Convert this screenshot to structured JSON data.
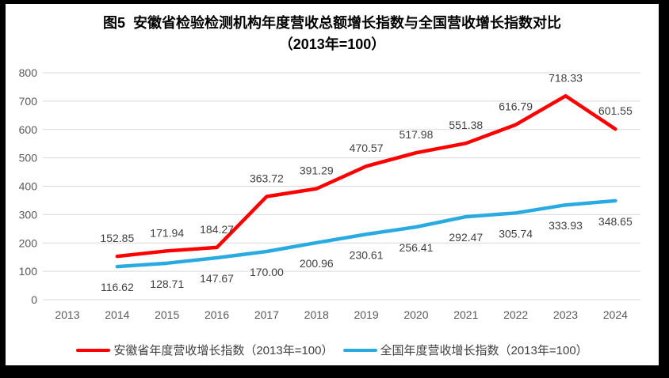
{
  "title": "图5  安徽省检验检测机构年度营收总额增长指数与全国营收增长指数对比",
  "subtitle": "（2013年=100）",
  "chart_data": {
    "type": "line",
    "categories": [
      "2013",
      "2014",
      "2015",
      "2016",
      "2017",
      "2018",
      "2019",
      "2020",
      "2021",
      "2022",
      "2023",
      "2024"
    ],
    "series": [
      {
        "name": "安徽省年度营收增长指数（2013年=100）",
        "color": "#FF0000",
        "label_position": "above",
        "values": [
          null,
          152.85,
          171.94,
          184.27,
          363.72,
          391.29,
          470.57,
          517.98,
          551.38,
          616.79,
          718.33,
          601.55
        ]
      },
      {
        "name": "全国年度营收增长指数（2013年=100）",
        "color": "#29ABE2",
        "label_position": "below",
        "values": [
          null,
          116.62,
          128.71,
          147.67,
          170.0,
          200.96,
          230.61,
          256.41,
          292.47,
          305.74,
          333.93,
          348.65
        ]
      }
    ],
    "ylim": [
      0,
      800
    ],
    "ytick_step": 100,
    "grid": true,
    "data_labels": true,
    "label_decimals": 2,
    "legend_position": "bottom",
    "grid_color": "#D9D9D9",
    "axis_label_color": "#595959",
    "data_label_color": "#404040"
  }
}
